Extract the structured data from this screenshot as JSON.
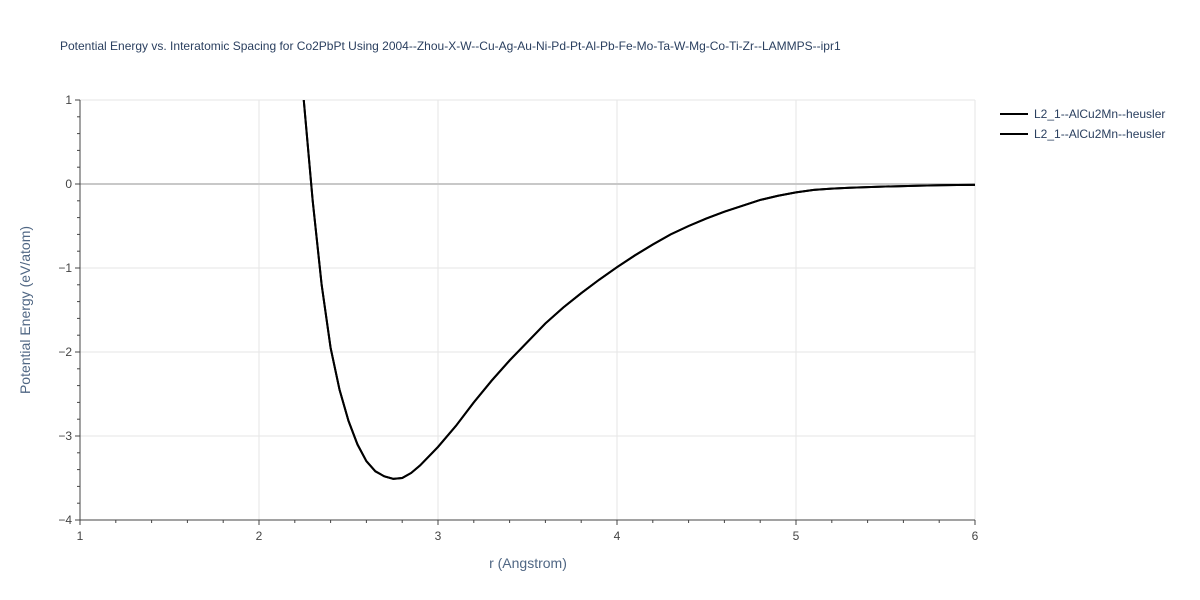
{
  "chart_data": {
    "type": "line",
    "title": "Potential Energy vs. Interatomic Spacing for Co2PbPt Using 2004--Zhou-X-W--Cu-Ag-Au-Ni-Pd-Pt-Al-Pb-Fe-Mo-Ta-W-Mg-Co-Ti-Zr--LAMMPS--ipr1",
    "xlabel": "r (Angstrom)",
    "ylabel": "Potential Energy (eV/atom)",
    "xlim": [
      1,
      6
    ],
    "ylim": [
      -4,
      1
    ],
    "x_ticks": [
      1,
      2,
      3,
      4,
      5,
      6
    ],
    "y_ticks": [
      1,
      0,
      -1,
      -2,
      -3,
      -4
    ],
    "x_tick_labels": [
      "1",
      "2",
      "3",
      "4",
      "5",
      "6"
    ],
    "y_tick_labels": [
      "1",
      "0",
      "−1",
      "−2",
      "−3",
      "−4"
    ],
    "grid": true,
    "legend_position": "top-right",
    "series": [
      {
        "name": "L2_1--AlCu2Mn--heusler",
        "color": "#000000",
        "x": [
          2.25,
          2.3,
          2.35,
          2.4,
          2.45,
          2.5,
          2.55,
          2.6,
          2.65,
          2.7,
          2.75,
          2.8,
          2.85,
          2.9,
          3.0,
          3.1,
          3.2,
          3.3,
          3.4,
          3.5,
          3.6,
          3.7,
          3.8,
          3.9,
          4.0,
          4.1,
          4.2,
          4.3,
          4.4,
          4.5,
          4.6,
          4.7,
          4.8,
          4.9,
          5.0,
          5.1,
          5.2,
          5.3,
          5.4,
          5.5,
          5.6,
          5.7,
          5.8,
          5.9,
          6.0
        ],
        "y": [
          1.0,
          -0.2,
          -1.2,
          -1.95,
          -2.45,
          -2.82,
          -3.1,
          -3.3,
          -3.42,
          -3.48,
          -3.51,
          -3.5,
          -3.44,
          -3.35,
          -3.13,
          -2.88,
          -2.6,
          -2.34,
          -2.1,
          -1.88,
          -1.66,
          -1.47,
          -1.3,
          -1.14,
          -0.99,
          -0.85,
          -0.72,
          -0.6,
          -0.5,
          -0.41,
          -0.33,
          -0.26,
          -0.19,
          -0.14,
          -0.1,
          -0.07,
          -0.055,
          -0.045,
          -0.037,
          -0.03,
          -0.025,
          -0.02,
          -0.015,
          -0.012,
          -0.01
        ]
      },
      {
        "name": "L2_1--AlCu2Mn--heusler",
        "color": "#000000",
        "x": [
          2.25,
          2.3,
          2.35,
          2.4,
          2.45,
          2.5,
          2.55,
          2.6,
          2.65,
          2.7,
          2.75,
          2.8,
          2.85,
          2.9,
          3.0,
          3.1,
          3.2,
          3.3,
          3.4,
          3.5,
          3.6,
          3.7,
          3.8,
          3.9,
          4.0,
          4.1,
          4.2,
          4.3,
          4.4,
          4.5,
          4.6,
          4.7,
          4.8,
          4.9,
          5.0,
          5.1,
          5.2,
          5.3,
          5.4,
          5.5,
          5.6,
          5.7,
          5.8,
          5.9,
          6.0
        ],
        "y": [
          1.0,
          -0.2,
          -1.2,
          -1.95,
          -2.45,
          -2.82,
          -3.1,
          -3.3,
          -3.42,
          -3.48,
          -3.51,
          -3.5,
          -3.44,
          -3.35,
          -3.13,
          -2.88,
          -2.6,
          -2.34,
          -2.1,
          -1.88,
          -1.66,
          -1.47,
          -1.3,
          -1.14,
          -0.99,
          -0.85,
          -0.72,
          -0.6,
          -0.5,
          -0.41,
          -0.33,
          -0.26,
          -0.19,
          -0.14,
          -0.1,
          -0.07,
          -0.055,
          -0.045,
          -0.037,
          -0.03,
          -0.025,
          -0.02,
          -0.015,
          -0.012,
          -0.01
        ]
      }
    ]
  }
}
